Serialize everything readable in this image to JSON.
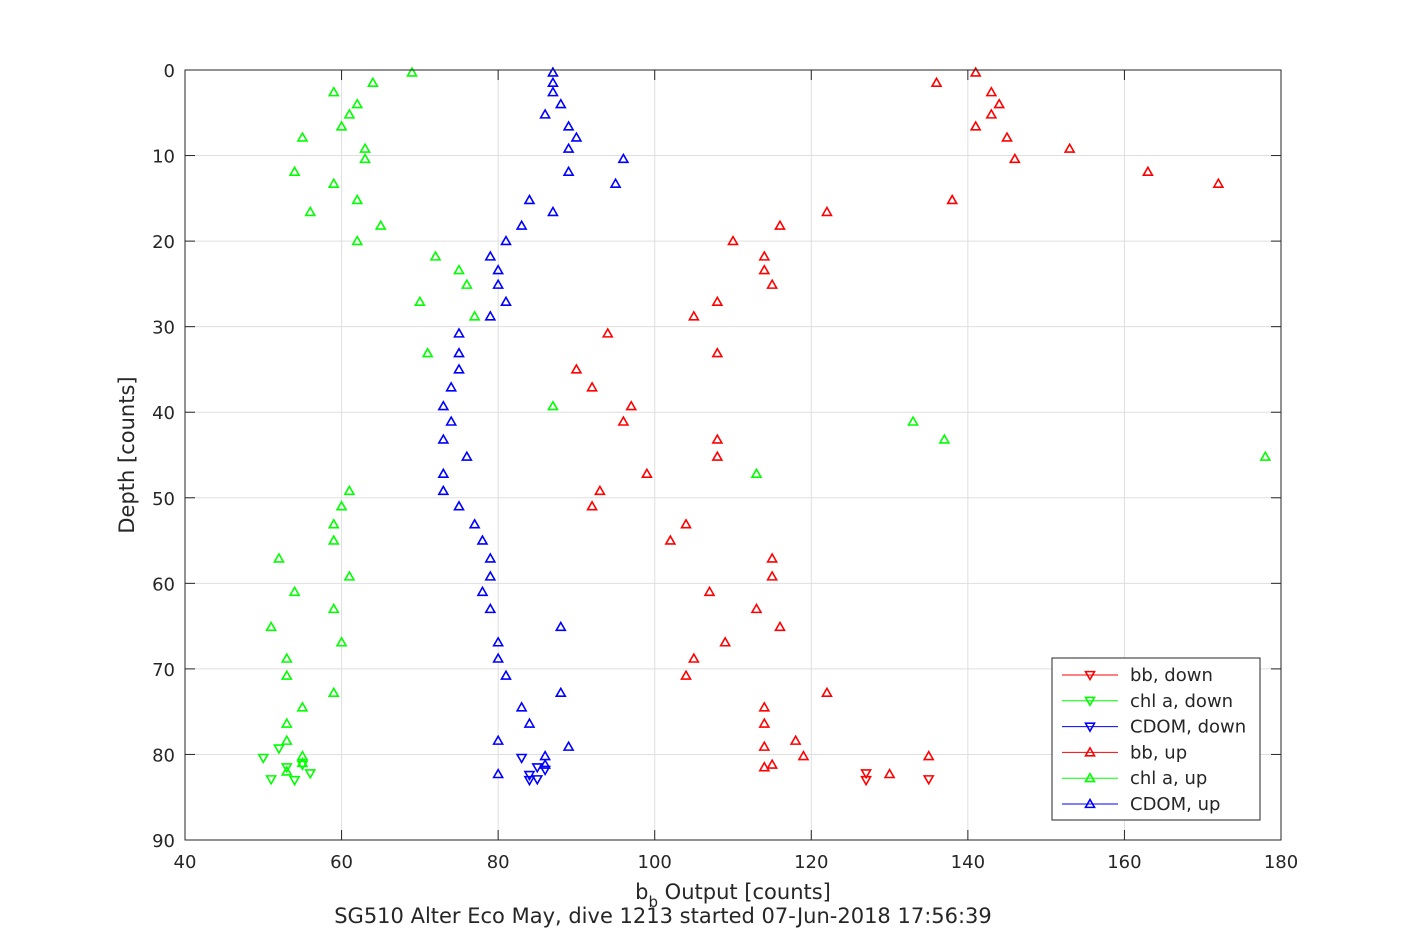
{
  "chart_data": {
    "type": "scatter",
    "xlabel_main": "b",
    "xlabel_sub": "b",
    "xlabel_rest": " Output [counts]",
    "ylabel": "Depth [counts]",
    "caption": "SG510 Alter Eco May, dive 1213 started 07-Jun-2018 17:56:39",
    "xlim": [
      40,
      180
    ],
    "ylim": [
      0,
      90
    ],
    "y_reversed": true,
    "x_ticks": [
      40,
      60,
      80,
      100,
      120,
      140,
      160,
      180
    ],
    "y_ticks": [
      0,
      10,
      20,
      30,
      40,
      50,
      60,
      70,
      80,
      90
    ],
    "grid": true,
    "legend_position": "bottom-right",
    "series": [
      {
        "name": "bb, down",
        "color": "#ff0000",
        "marker": "down",
        "points": [
          [
            127,
            82.2
          ],
          [
            127,
            83.0
          ],
          [
            135,
            82.9
          ]
        ]
      },
      {
        "name": "chl a, down",
        "color": "#00ff00",
        "marker": "down",
        "points": [
          [
            50,
            80.4
          ],
          [
            52,
            79.3
          ],
          [
            51,
            82.9
          ],
          [
            53,
            81.5
          ],
          [
            55,
            81.2
          ],
          [
            56,
            82.2
          ],
          [
            54,
            83.0
          ]
        ]
      },
      {
        "name": "CDOM, down",
        "color": "#0000ff",
        "marker": "down",
        "points": [
          [
            83,
            80.4
          ],
          [
            85,
            81.5
          ],
          [
            86,
            81.8
          ],
          [
            84,
            82.4
          ],
          [
            84,
            83.0
          ],
          [
            85,
            82.9
          ]
        ]
      },
      {
        "name": "bb, up",
        "color": "#ff0000",
        "marker": "up",
        "points": [
          [
            141,
            0.3
          ],
          [
            136,
            1.5
          ],
          [
            143,
            2.6
          ],
          [
            144,
            4.0
          ],
          [
            143,
            5.2
          ],
          [
            141,
            6.6
          ],
          [
            145,
            7.9
          ],
          [
            153,
            9.2
          ],
          [
            146,
            10.4
          ],
          [
            163,
            11.9
          ],
          [
            172,
            13.3
          ],
          [
            138,
            15.2
          ],
          [
            122,
            16.6
          ],
          [
            116,
            18.2
          ],
          [
            110,
            20.0
          ],
          [
            114,
            21.8
          ],
          [
            114,
            23.4
          ],
          [
            115,
            25.1
          ],
          [
            108,
            27.1
          ],
          [
            105,
            28.8
          ],
          [
            94,
            30.8
          ],
          [
            108,
            33.1
          ],
          [
            90,
            35.0
          ],
          [
            92,
            37.1
          ],
          [
            97,
            39.3
          ],
          [
            96,
            41.1
          ],
          [
            108,
            43.2
          ],
          [
            108,
            45.2
          ],
          [
            99,
            47.2
          ],
          [
            93,
            49.2
          ],
          [
            92,
            51.0
          ],
          [
            104,
            53.1
          ],
          [
            102,
            55.0
          ],
          [
            115,
            57.1
          ],
          [
            115,
            59.2
          ],
          [
            107,
            61.0
          ],
          [
            113,
            63.0
          ],
          [
            116,
            65.1
          ],
          [
            109,
            66.9
          ],
          [
            105,
            68.8
          ],
          [
            104,
            70.8
          ],
          [
            122,
            72.8
          ],
          [
            114,
            74.5
          ],
          [
            114,
            76.4
          ],
          [
            118,
            78.4
          ],
          [
            114,
            79.1
          ],
          [
            119,
            80.2
          ],
          [
            115,
            81.2
          ],
          [
            114,
            81.5
          ],
          [
            130,
            82.3
          ],
          [
            135,
            80.2
          ]
        ]
      },
      {
        "name": "chl a, up",
        "color": "#00ff00",
        "marker": "up",
        "points": [
          [
            69,
            0.3
          ],
          [
            64,
            1.5
          ],
          [
            59,
            2.6
          ],
          [
            62,
            4.0
          ],
          [
            61,
            5.2
          ],
          [
            60,
            6.6
          ],
          [
            55,
            7.9
          ],
          [
            63,
            9.2
          ],
          [
            63,
            10.4
          ],
          [
            54,
            11.9
          ],
          [
            59,
            13.3
          ],
          [
            62,
            15.2
          ],
          [
            56,
            16.6
          ],
          [
            65,
            18.2
          ],
          [
            62,
            20.0
          ],
          [
            72,
            21.8
          ],
          [
            75,
            23.4
          ],
          [
            76,
            25.1
          ],
          [
            70,
            27.1
          ],
          [
            77,
            28.8
          ],
          [
            71,
            33.1
          ],
          [
            87,
            39.3
          ],
          [
            133,
            41.1
          ],
          [
            137,
            43.2
          ],
          [
            178,
            45.2
          ],
          [
            113,
            47.2
          ],
          [
            61,
            49.2
          ],
          [
            60,
            51.0
          ],
          [
            59,
            53.1
          ],
          [
            59,
            55.0
          ],
          [
            52,
            57.1
          ],
          [
            61,
            59.2
          ],
          [
            54,
            61.0
          ],
          [
            59,
            63.0
          ],
          [
            51,
            65.1
          ],
          [
            60,
            66.9
          ],
          [
            53,
            68.8
          ],
          [
            53,
            70.8
          ],
          [
            59,
            72.8
          ],
          [
            55,
            74.5
          ],
          [
            53,
            76.4
          ],
          [
            53,
            78.4
          ],
          [
            55,
            80.2
          ],
          [
            55,
            81.0
          ],
          [
            53,
            82.0
          ]
        ]
      },
      {
        "name": "CDOM, up",
        "color": "#0000ff",
        "marker": "up",
        "points": [
          [
            87,
            0.3
          ],
          [
            87,
            1.5
          ],
          [
            87,
            2.6
          ],
          [
            88,
            4.0
          ],
          [
            86,
            5.2
          ],
          [
            89,
            6.6
          ],
          [
            90,
            7.9
          ],
          [
            89,
            9.2
          ],
          [
            96,
            10.4
          ],
          [
            89,
            11.9
          ],
          [
            95,
            13.3
          ],
          [
            84,
            15.2
          ],
          [
            87,
            16.6
          ],
          [
            83,
            18.2
          ],
          [
            81,
            20.0
          ],
          [
            79,
            21.8
          ],
          [
            80,
            23.4
          ],
          [
            80,
            25.1
          ],
          [
            81,
            27.1
          ],
          [
            79,
            28.8
          ],
          [
            75,
            30.8
          ],
          [
            75,
            33.1
          ],
          [
            75,
            35.0
          ],
          [
            74,
            37.1
          ],
          [
            73,
            39.3
          ],
          [
            74,
            41.1
          ],
          [
            73,
            43.2
          ],
          [
            76,
            45.2
          ],
          [
            73,
            47.2
          ],
          [
            73,
            49.2
          ],
          [
            75,
            51.0
          ],
          [
            77,
            53.1
          ],
          [
            78,
            55.0
          ],
          [
            79,
            57.1
          ],
          [
            79,
            59.2
          ],
          [
            78,
            61.0
          ],
          [
            79,
            63.0
          ],
          [
            88,
            65.1
          ],
          [
            80,
            66.9
          ],
          [
            80,
            68.8
          ],
          [
            81,
            70.8
          ],
          [
            88,
            72.8
          ],
          [
            83,
            74.5
          ],
          [
            84,
            76.4
          ],
          [
            80,
            78.4
          ],
          [
            89,
            79.1
          ],
          [
            86,
            80.2
          ],
          [
            86,
            81.2
          ],
          [
            80,
            82.3
          ]
        ]
      }
    ]
  }
}
